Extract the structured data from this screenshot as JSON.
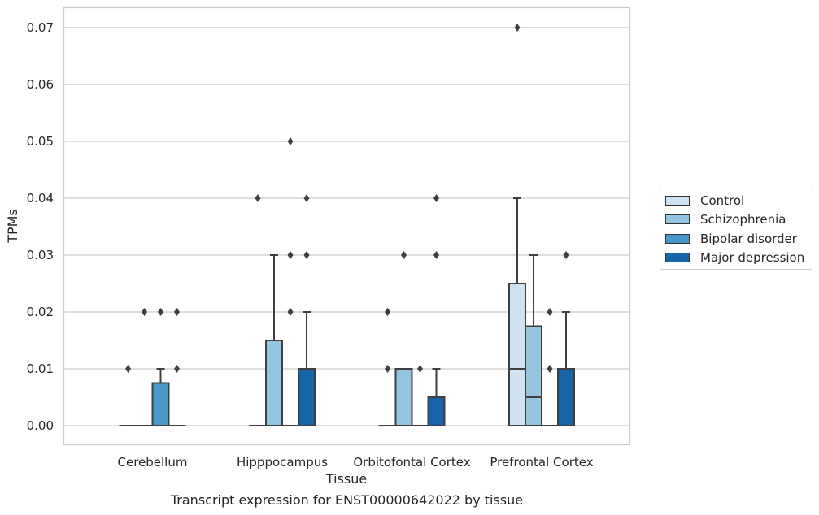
{
  "caption": "Transcript expression for ENST00000642022 by tissue",
  "legend": {
    "items": [
      {
        "label": "Control",
        "color": "#d0e1f2"
      },
      {
        "label": "Schizophrenia",
        "color": "#94c4df"
      },
      {
        "label": "Bipolar disorder",
        "color": "#4a98c9"
      },
      {
        "label": "Major depression",
        "color": "#1764ab"
      }
    ]
  },
  "chart_data": {
    "type": "box",
    "xlabel": "Tissue",
    "ylabel": "TPMs",
    "ylim": [
      -0.0034,
      0.0735
    ],
    "yticks": [
      "0.00",
      "0.01",
      "0.02",
      "0.03",
      "0.04",
      "0.05",
      "0.06",
      "0.07"
    ],
    "categories": [
      "Cerebellum",
      "Hipppocampus",
      "Orbitofontal Cortex",
      "Prefrontal Cortex"
    ],
    "grid": "y",
    "legend_position": "right",
    "series": [
      {
        "name": "Control",
        "color": "#d0e1f2",
        "boxes": [
          {
            "q1": 0,
            "median": 0,
            "q3": 0,
            "whisker_low": 0,
            "whisker_high": 0,
            "outliers": [
              0.01
            ]
          },
          {
            "q1": 0,
            "median": 0,
            "q3": 0,
            "whisker_low": 0,
            "whisker_high": 0,
            "outliers": [
              0.04
            ]
          },
          {
            "q1": 0,
            "median": 0,
            "q3": 0,
            "whisker_low": 0,
            "whisker_high": 0,
            "outliers": [
              0.01,
              0.02,
              0.02
            ]
          },
          {
            "q1": 0,
            "median": 0.01,
            "q3": 0.025,
            "whisker_low": 0,
            "whisker_high": 0.04,
            "outliers": [
              0.07
            ]
          }
        ]
      },
      {
        "name": "Schizophrenia",
        "color": "#94c4df",
        "boxes": [
          {
            "q1": 0,
            "median": 0,
            "q3": 0,
            "whisker_low": 0,
            "whisker_high": 0,
            "outliers": [
              0.02
            ]
          },
          {
            "q1": 0,
            "median": 0,
            "q3": 0.015,
            "whisker_low": 0,
            "whisker_high": 0.03,
            "outliers": []
          },
          {
            "q1": 0,
            "median": 0,
            "q3": 0.01,
            "whisker_low": 0,
            "whisker_high": 0.01,
            "outliers": [
              0.03
            ]
          },
          {
            "q1": 0,
            "median": 0.005,
            "q3": 0.0175,
            "whisker_low": 0,
            "whisker_high": 0.03,
            "outliers": []
          }
        ]
      },
      {
        "name": "Bipolar disorder",
        "color": "#4a98c9",
        "boxes": [
          {
            "q1": 0,
            "median": 0,
            "q3": 0.0075,
            "whisker_low": 0,
            "whisker_high": 0.01,
            "outliers": [
              0.02
            ]
          },
          {
            "q1": 0,
            "median": 0,
            "q3": 0,
            "whisker_low": 0,
            "whisker_high": 0,
            "outliers": [
              0.02,
              0.03,
              0.05
            ]
          },
          {
            "q1": 0,
            "median": 0,
            "q3": 0,
            "whisker_low": 0,
            "whisker_high": 0,
            "outliers": [
              0.01
            ]
          },
          {
            "q1": 0,
            "median": 0,
            "q3": 0,
            "whisker_low": 0,
            "whisker_high": 0,
            "outliers": [
              0.01,
              0.02
            ]
          }
        ]
      },
      {
        "name": "Major depression",
        "color": "#1764ab",
        "boxes": [
          {
            "q1": 0,
            "median": 0,
            "q3": 0,
            "whisker_low": 0,
            "whisker_high": 0,
            "outliers": [
              0.01,
              0.02
            ]
          },
          {
            "q1": 0,
            "median": 0,
            "q3": 0.01,
            "whisker_low": 0,
            "whisker_high": 0.02,
            "outliers": [
              0.03,
              0.04
            ]
          },
          {
            "q1": 0,
            "median": 0,
            "q3": 0.005,
            "whisker_low": 0,
            "whisker_high": 0.01,
            "outliers": [
              0.03,
              0.04
            ]
          },
          {
            "q1": 0,
            "median": 0,
            "q3": 0.01,
            "whisker_low": 0,
            "whisker_high": 0.02,
            "outliers": [
              0.03
            ]
          }
        ]
      }
    ]
  }
}
